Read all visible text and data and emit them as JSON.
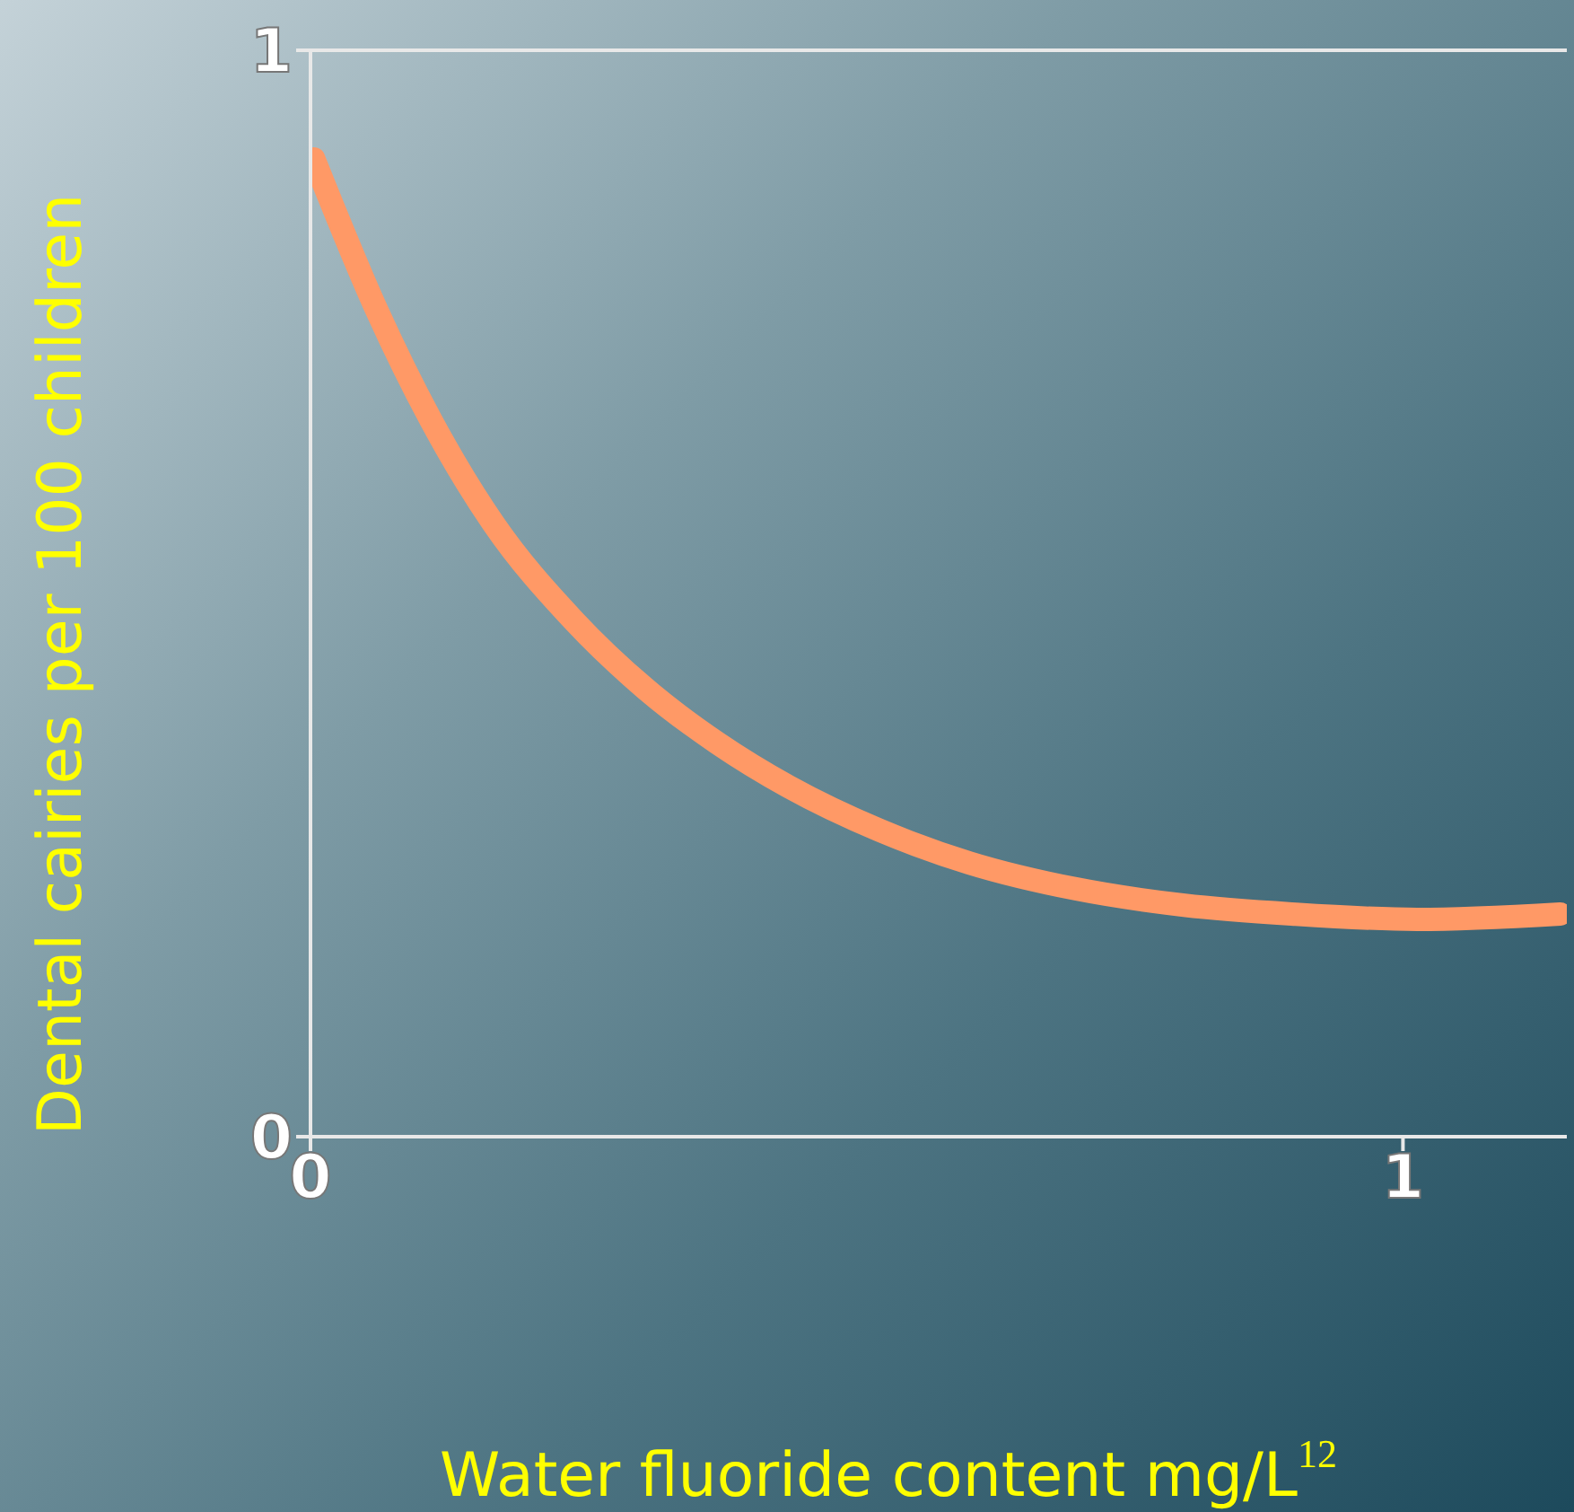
{
  "chart_data": {
    "type": "line",
    "xlabel": "Water fluoride content mg/L$^{12}$",
    "ylabel": "Dental cairies per 100 children",
    "x": [
      0.003,
      0.061,
      0.11,
      0.167,
      0.241,
      0.307,
      0.373,
      0.438,
      0.521,
      0.603,
      0.701,
      0.8,
      0.898,
      1.013,
      1.144
    ],
    "series": [
      {
        "color": "#ff9966",
        "values": [
          0.9,
          0.76,
          0.66,
          0.565,
          0.475,
          0.412,
          0.362,
          0.322,
          0.282,
          0.252,
          0.228,
          0.213,
          0.205,
          0.2,
          0.205
        ]
      }
    ],
    "xlim": [
      0,
      1.15
    ],
    "ylim": [
      0,
      1
    ],
    "xticks": [
      0,
      1
    ],
    "yticks": [
      0,
      1
    ],
    "ref_lines": [
      {
        "axis": "y",
        "value": 1,
        "color": "#e8e8e8"
      }
    ],
    "marker": "none",
    "line_style": "solid"
  }
}
